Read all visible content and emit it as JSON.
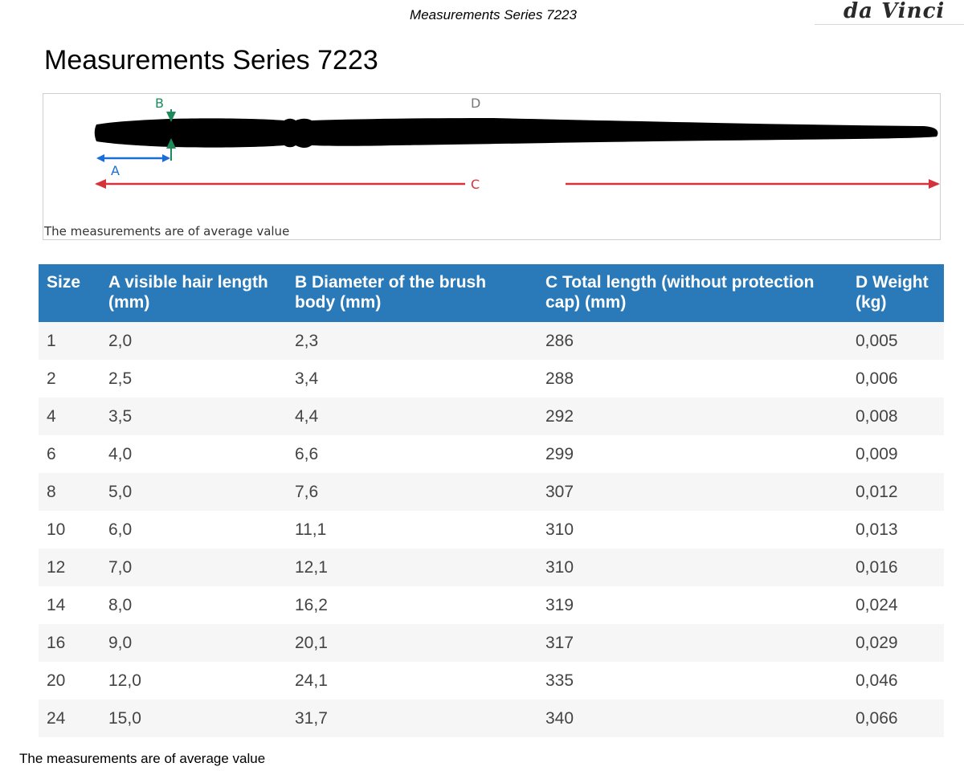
{
  "header": {
    "title": "Measurements Series 7223",
    "logo": "da Vinci"
  },
  "page_title": "Measurements Series 7223",
  "diagram": {
    "labels": {
      "a": "A",
      "b": "B",
      "c": "C",
      "d": "D"
    },
    "note": "The measurements are of average value",
    "colors": {
      "a": "#1a6fd6",
      "b": "#1e8a5a",
      "c": "#d6323c",
      "d": "#777777",
      "brush": "#000000"
    }
  },
  "table": {
    "headers": {
      "size": "Size",
      "a": "A visible hair length (mm)",
      "b": "B Diameter of the brush body (mm)",
      "c": "C Total length (without protection cap) (mm)",
      "d": "D Weight (kg)"
    },
    "rows": [
      {
        "size": "1",
        "a": "2,0",
        "b": "2,3",
        "c": "286",
        "d": "0,005"
      },
      {
        "size": "2",
        "a": "2,5",
        "b": "3,4",
        "c": "288",
        "d": "0,006"
      },
      {
        "size": "4",
        "a": "3,5",
        "b": "4,4",
        "c": "292",
        "d": "0,008"
      },
      {
        "size": "6",
        "a": "4,0",
        "b": "6,6",
        "c": "299",
        "d": "0,009"
      },
      {
        "size": "8",
        "a": "5,0",
        "b": "7,6",
        "c": "307",
        "d": "0,012"
      },
      {
        "size": "10",
        "a": "6,0",
        "b": "11,1",
        "c": "310",
        "d": "0,013"
      },
      {
        "size": "12",
        "a": "7,0",
        "b": "12,1",
        "c": "310",
        "d": "0,016"
      },
      {
        "size": "14",
        "a": "8,0",
        "b": "16,2",
        "c": "319",
        "d": "0,024"
      },
      {
        "size": "16",
        "a": "9,0",
        "b": "20,1",
        "c": "317",
        "d": "0,029"
      },
      {
        "size": "20",
        "a": "12,0",
        "b": "24,1",
        "c": "335",
        "d": "0,046"
      },
      {
        "size": "24",
        "a": "15,0",
        "b": "31,7",
        "c": "340",
        "d": "0,066"
      }
    ],
    "header_color": "#2a7ab9"
  },
  "footnote": "The measurements are of average value"
}
